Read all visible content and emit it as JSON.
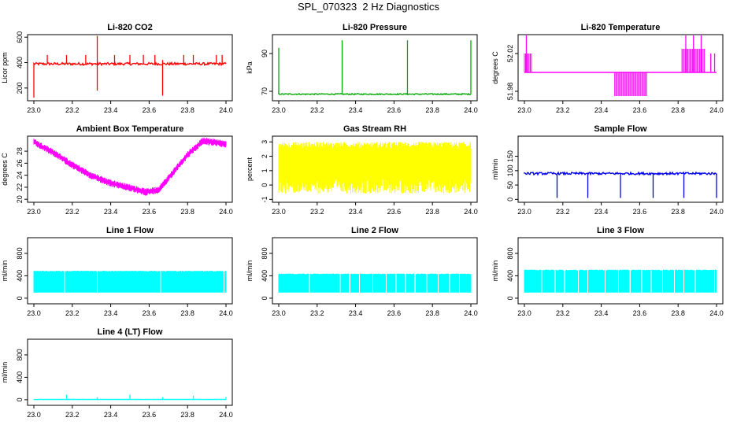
{
  "figure": {
    "title": "SPL_070323  2 Hz Diagnostics"
  },
  "chart_data": [
    {
      "type": "line",
      "title": "Li-820 CO2",
      "ylabel": "Licor ppm",
      "color": "#ff0000",
      "xlim": [
        23.0,
        24.0
      ],
      "ylim": [
        100,
        620
      ],
      "yticks": [
        200,
        400,
        600
      ],
      "xticks": [
        23.0,
        23.2,
        23.4,
        23.6,
        23.8,
        24.0
      ],
      "baseline": 390,
      "noise": 10,
      "spikes": [
        {
          "x": 23.0,
          "y": 125
        },
        {
          "x": 23.33,
          "y": 610
        },
        {
          "x": 23.33,
          "y": 180
        },
        {
          "x": 23.67,
          "y": 140
        },
        {
          "x": 23.67,
          "y": 420
        },
        {
          "x": 23.07,
          "y": 460
        },
        {
          "x": 23.17,
          "y": 460
        },
        {
          "x": 23.27,
          "y": 460
        },
        {
          "x": 23.42,
          "y": 460
        },
        {
          "x": 23.5,
          "y": 460
        },
        {
          "x": 23.57,
          "y": 460
        },
        {
          "x": 23.63,
          "y": 460
        },
        {
          "x": 23.78,
          "y": 460
        },
        {
          "x": 23.83,
          "y": 460
        },
        {
          "x": 23.95,
          "y": 460
        },
        {
          "x": 23.98,
          "y": 460
        }
      ]
    },
    {
      "type": "line",
      "title": "Li-820 Pressure",
      "ylabel": "kPa",
      "color": "#00aa00",
      "xlim": [
        23.0,
        24.0
      ],
      "ylim": [
        65,
        100
      ],
      "yticks": [
        70,
        90
      ],
      "xticks": [
        23.0,
        23.2,
        23.4,
        23.6,
        23.8,
        24.0
      ],
      "baseline": 68.5,
      "noise": 0.3,
      "spikes": [
        {
          "x": 23.0,
          "y": 93
        },
        {
          "x": 23.33,
          "y": 97
        },
        {
          "x": 23.67,
          "y": 97
        },
        {
          "x": 24.0,
          "y": 97
        }
      ]
    },
    {
      "type": "line",
      "title": "Li-820 Temperature",
      "ylabel": "degrees C",
      "color": "#ff00ff",
      "xlim": [
        23.0,
        24.0
      ],
      "ylim": [
        51.97,
        52.04
      ],
      "yticks": [
        51.98,
        52.02
      ],
      "xticks": [
        23.0,
        23.2,
        23.4,
        23.6,
        23.8,
        24.0
      ],
      "baseline": 52.0,
      "bursts": [
        {
          "from": 23.0,
          "to": 23.04,
          "low": 52.0,
          "high": 52.02
        },
        {
          "from": 23.47,
          "to": 23.64,
          "low": 51.975,
          "high": 52.0
        },
        {
          "from": 23.82,
          "to": 23.94,
          "low": 52.0,
          "high": 52.025
        }
      ],
      "spikes": [
        {
          "x": 23.01,
          "y": 52.04
        },
        {
          "x": 23.84,
          "y": 52.04
        },
        {
          "x": 23.88,
          "y": 52.04
        },
        {
          "x": 23.92,
          "y": 52.04
        },
        {
          "x": 23.97,
          "y": 52.02
        },
        {
          "x": 23.99,
          "y": 52.02
        }
      ]
    },
    {
      "type": "line",
      "title": "Ambient Box Temperature",
      "ylabel": "degrees C",
      "color": "#ff00ff",
      "xlim": [
        23.0,
        24.0
      ],
      "ylim": [
        19.5,
        30.5
      ],
      "yticks": [
        20,
        22,
        24,
        26,
        28
      ],
      "xticks": [
        23.0,
        23.2,
        23.4,
        23.6,
        23.8,
        24.0
      ],
      "trend": [
        [
          23.0,
          29.5
        ],
        [
          23.1,
          27.8
        ],
        [
          23.2,
          25.7
        ],
        [
          23.3,
          23.9
        ],
        [
          23.4,
          22.7
        ],
        [
          23.5,
          21.9
        ],
        [
          23.58,
          21.2
        ],
        [
          23.65,
          21.6
        ],
        [
          23.7,
          23.5
        ],
        [
          23.8,
          27.4
        ],
        [
          23.88,
          29.7
        ],
        [
          24.0,
          29.2
        ]
      ],
      "noise": 0.6
    },
    {
      "type": "line",
      "title": "Gas Stream RH",
      "ylabel": "percent",
      "color": "#ffff00",
      "xlim": [
        23.0,
        24.0
      ],
      "ylim": [
        -1.2,
        3.4
      ],
      "yticks": [
        -1,
        0,
        1,
        2,
        3
      ],
      "xticks": [
        23.0,
        23.2,
        23.4,
        23.6,
        23.8,
        24.0
      ],
      "band": {
        "low": -0.6,
        "high": 3.0,
        "core_low": 0.5,
        "core_high": 2.5
      }
    },
    {
      "type": "line",
      "title": "Sample Flow",
      "ylabel": "ml/min",
      "color": "#0000ee",
      "xlim": [
        23.0,
        24.0
      ],
      "ylim": [
        -10,
        220
      ],
      "yticks": [
        0,
        50,
        100,
        150
      ],
      "xticks": [
        23.0,
        23.2,
        23.4,
        23.6,
        23.8,
        24.0
      ],
      "baseline": 90,
      "noise": 4,
      "spikes": [
        {
          "x": 23.17,
          "y": 5
        },
        {
          "x": 23.33,
          "y": 5
        },
        {
          "x": 23.5,
          "y": 5
        },
        {
          "x": 23.67,
          "y": 5
        },
        {
          "x": 23.83,
          "y": 5
        },
        {
          "x": 24.0,
          "y": 5
        }
      ]
    },
    {
      "type": "line",
      "title": "Line 1 Flow",
      "ylabel": "ml/min",
      "color": "#00ffff",
      "xlim": [
        23.0,
        24.0
      ],
      "ylim": [
        -100,
        1080
      ],
      "yticks": [
        0,
        400,
        800
      ],
      "xticks": [
        23.0,
        23.2,
        23.4,
        23.6,
        23.8,
        24.0
      ],
      "band": {
        "low": 100,
        "high": 490
      },
      "gaps": [
        23.16,
        23.33,
        23.66,
        23.99
      ]
    },
    {
      "type": "line",
      "title": "Line 2 Flow",
      "ylabel": "ml/min",
      "color": "#00ffff",
      "xlim": [
        23.0,
        24.0
      ],
      "ylim": [
        -100,
        1080
      ],
      "yticks": [
        0,
        400,
        800
      ],
      "xticks": [
        23.0,
        23.2,
        23.4,
        23.6,
        23.8,
        24.0
      ],
      "band": {
        "low": 100,
        "high": 440
      },
      "gaps": [
        23.16,
        23.32,
        23.37,
        23.42,
        23.49,
        23.56,
        23.61,
        23.66,
        23.71,
        23.77,
        23.83,
        23.89,
        23.94
      ]
    },
    {
      "type": "line",
      "title": "Line 3 Flow",
      "ylabel": "ml/min",
      "color": "#00ffff",
      "xlim": [
        23.0,
        24.0
      ],
      "ylim": [
        -100,
        1080
      ],
      "yticks": [
        0,
        400,
        800
      ],
      "xticks": [
        23.0,
        23.2,
        23.4,
        23.6,
        23.8,
        24.0
      ],
      "band": {
        "low": 100,
        "high": 510
      },
      "gaps": [
        23.09,
        23.16,
        23.21,
        23.28,
        23.33,
        23.42,
        23.49,
        23.55,
        23.61,
        23.66,
        23.72,
        23.78,
        23.83,
        23.89,
        23.99
      ]
    },
    {
      "type": "line",
      "title": "Line 4 (LT) Flow",
      "ylabel": "ml/min",
      "color": "#00ffff",
      "xlim": [
        23.0,
        24.0
      ],
      "ylim": [
        -100,
        1080
      ],
      "yticks": [
        0,
        400,
        800
      ],
      "xticks": [
        23.0,
        23.2,
        23.4,
        23.6,
        23.8,
        24.0
      ],
      "baseline": 5,
      "noise": 2,
      "spikes": [
        {
          "x": 23.17,
          "y": 90
        },
        {
          "x": 23.33,
          "y": 45
        },
        {
          "x": 23.5,
          "y": 90
        },
        {
          "x": 23.67,
          "y": 45
        },
        {
          "x": 23.83,
          "y": 70
        },
        {
          "x": 24.0,
          "y": 50
        }
      ]
    }
  ]
}
